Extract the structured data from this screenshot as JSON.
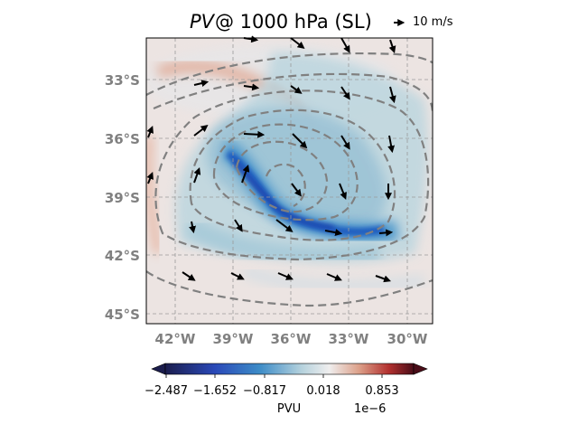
{
  "map": {
    "title_variable": "PV",
    "title_rest": "@ 1000 hPa (SL)",
    "quiver_key_label": "10 m/s",
    "lat_labels": [
      "33°S",
      "36°S",
      "39°S",
      "42°S",
      "45°S"
    ],
    "lon_labels": [
      "42°W",
      "39°W",
      "36°W",
      "33°W",
      "30°W"
    ],
    "label_color": "#808080",
    "colormap": "balance (blue-white-red)",
    "colorbar": {
      "ticks": [
        "−2.487",
        "−1.652",
        "−0.817",
        "0.018",
        "0.853"
      ],
      "label": "PVU",
      "exponent": "1e−6",
      "extend": "both"
    },
    "contours": {
      "style": "dashed",
      "color": "#808080"
    },
    "gridlines": true
  }
}
